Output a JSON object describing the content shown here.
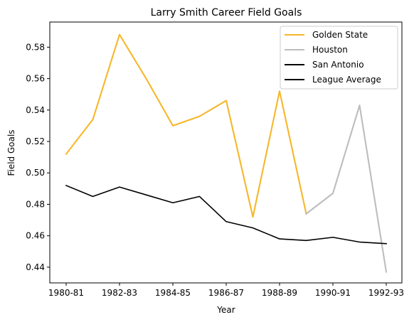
{
  "chart_data": {
    "type": "line",
    "title": "Larry Smith  Career Field Goals",
    "xlabel": "Year",
    "ylabel": "Field Goals",
    "x_tick_labels": [
      "1980-81",
      "1982-83",
      "1984-85",
      "1986-87",
      "1988-89",
      "1990-91",
      "1992-93"
    ],
    "y_tick_labels": [
      "0.44",
      "0.46",
      "0.48",
      "0.50",
      "0.52",
      "0.54",
      "0.56",
      "0.58"
    ],
    "ylim": [
      0.43,
      0.596
    ],
    "grid": false,
    "legend_position": "top-right",
    "x_seasons": [
      "1980-81",
      "1981-82",
      "1982-83",
      "1983-84",
      "1984-85",
      "1985-86",
      "1986-87",
      "1987-88",
      "1988-89",
      "1989-90",
      "1990-91",
      "1991-92",
      "1992-93"
    ],
    "series": [
      {
        "name": "Golden State",
        "color": "#f6b72b",
        "points": [
          [
            "1980-81",
            0.512
          ],
          [
            "1981-82",
            0.534
          ],
          [
            "1982-83",
            0.588
          ],
          [
            "1983-84",
            0.56
          ],
          [
            "1984-85",
            0.53
          ],
          [
            "1985-86",
            0.536
          ],
          [
            "1986-87",
            0.546
          ],
          [
            "1987-88",
            0.472
          ],
          [
            "1988-89",
            0.552
          ],
          [
            "1989-90",
            0.474
          ]
        ]
      },
      {
        "name": "Houston",
        "color": "#bdbdbd",
        "points": [
          [
            "1989-90",
            0.474
          ],
          [
            "1990-91",
            0.487
          ],
          [
            "1991-92",
            0.543
          ],
          [
            "1992-93",
            0.437
          ]
        ]
      },
      {
        "name": "San Antonio",
        "color": "#000000",
        "points": []
      },
      {
        "name": "League Average",
        "color": "#000000",
        "points": [
          [
            "1980-81",
            0.492
          ],
          [
            "1981-82",
            0.485
          ],
          [
            "1982-83",
            0.491
          ],
          [
            "1983-84",
            0.486
          ],
          [
            "1984-85",
            0.481
          ],
          [
            "1985-86",
            0.485
          ],
          [
            "1986-87",
            0.469
          ],
          [
            "1987-88",
            0.465
          ],
          [
            "1988-89",
            0.458
          ],
          [
            "1989-90",
            0.457
          ],
          [
            "1990-91",
            0.459
          ],
          [
            "1991-92",
            0.456
          ],
          [
            "1992-93",
            0.455
          ]
        ]
      }
    ]
  }
}
